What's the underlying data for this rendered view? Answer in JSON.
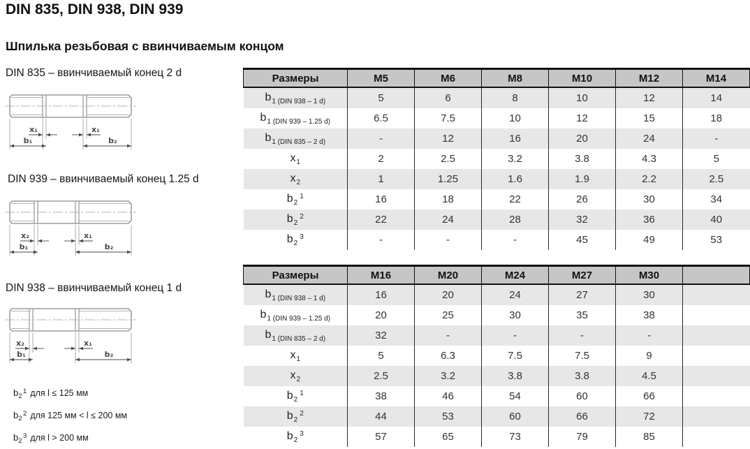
{
  "page_title": "DIN 835, DIN 938, DIN 939",
  "subtitle": "Шпилька резьбовая с ввинчиваемым концом",
  "drawings": [
    {
      "caption": "DIN 835 – ввинчиваемый конец 2 d",
      "left_x_label": "x₁",
      "right_x_label": "x₁",
      "b1_label": "b₁",
      "b2_label": "b₂"
    },
    {
      "caption": "DIN 939 – ввинчиваемый конец 1.25 d",
      "left_x_label": "x₂",
      "right_x_label": "x₁",
      "b1_label": "b₁",
      "b2_label": "b₂"
    },
    {
      "caption": "DIN 938 – ввинчиваемый конец 1 d",
      "left_x_label": "x₂",
      "right_x_label": "x₁",
      "b1_label": "b₁",
      "b2_label": "b₂"
    }
  ],
  "footnotes": [
    {
      "base": "b",
      "sub": "2",
      "sup": "1",
      "text": "для l ≤ 125 мм"
    },
    {
      "base": "b",
      "sub": "2",
      "sup": "2",
      "text": "для 125 мм < l ≤ 200 мм"
    },
    {
      "base": "b",
      "sub": "2",
      "sup": "3",
      "text": "для l > 200 мм"
    }
  ],
  "tables": [
    {
      "header": [
        "Размеры",
        "M5",
        "M6",
        "M8",
        "M10",
        "M12",
        "M14"
      ],
      "rows": [
        {
          "label": {
            "base": "b",
            "sub": "1 (DIN 938 – 1 d)",
            "sup": ""
          },
          "values": [
            "5",
            "6",
            "8",
            "10",
            "12",
            "14"
          ]
        },
        {
          "label": {
            "base": "b",
            "sub": "1 (DIN 939 – 1.25 d)",
            "sup": ""
          },
          "values": [
            "6.5",
            "7.5",
            "10",
            "12",
            "15",
            "18"
          ]
        },
        {
          "label": {
            "base": "b",
            "sub": "1 (DIN 835 – 2 d)",
            "sup": ""
          },
          "values": [
            "-",
            "12",
            "16",
            "20",
            "24",
            "-"
          ]
        },
        {
          "label": {
            "base": "x",
            "sub": "1",
            "sup": ""
          },
          "values": [
            "2",
            "2.5",
            "3.2",
            "3.8",
            "4.3",
            "5"
          ]
        },
        {
          "label": {
            "base": "x",
            "sub": "2",
            "sup": ""
          },
          "values": [
            "1",
            "1.25",
            "1.6",
            "1.9",
            "2.2",
            "2.5"
          ]
        },
        {
          "label": {
            "base": "b",
            "sub": "2",
            "sup": "1"
          },
          "values": [
            "16",
            "18",
            "22",
            "26",
            "30",
            "34"
          ]
        },
        {
          "label": {
            "base": "b",
            "sub": "2",
            "sup": "2"
          },
          "values": [
            "22",
            "24",
            "28",
            "32",
            "36",
            "40"
          ]
        },
        {
          "label": {
            "base": "b",
            "sub": "2",
            "sup": "3"
          },
          "values": [
            "-",
            "-",
            "-",
            "45",
            "49",
            "53"
          ]
        }
      ]
    },
    {
      "header": [
        "Размеры",
        "M16",
        "M20",
        "M24",
        "M27",
        "M30",
        ""
      ],
      "rows": [
        {
          "label": {
            "base": "b",
            "sub": "1 (DIN 938 – 1 d)",
            "sup": ""
          },
          "values": [
            "16",
            "20",
            "24",
            "27",
            "30",
            ""
          ]
        },
        {
          "label": {
            "base": "b",
            "sub": "1 (DIN 939 – 1.25 d)",
            "sup": ""
          },
          "values": [
            "20",
            "25",
            "30",
            "35",
            "38",
            ""
          ]
        },
        {
          "label": {
            "base": "b",
            "sub": "1 (DIN 835 – 2 d)",
            "sup": ""
          },
          "values": [
            "32",
            "-",
            "-",
            "-",
            "-",
            ""
          ]
        },
        {
          "label": {
            "base": "x",
            "sub": "1",
            "sup": ""
          },
          "values": [
            "5",
            "6.3",
            "7.5",
            "7.5",
            "9",
            ""
          ]
        },
        {
          "label": {
            "base": "x",
            "sub": "2",
            "sup": ""
          },
          "values": [
            "2.5",
            "3.2",
            "3.8",
            "3.8",
            "4.5",
            ""
          ]
        },
        {
          "label": {
            "base": "b",
            "sub": "2",
            "sup": "1"
          },
          "values": [
            "38",
            "46",
            "54",
            "60",
            "66",
            ""
          ]
        },
        {
          "label": {
            "base": "b",
            "sub": "2",
            "sup": "2"
          },
          "values": [
            "44",
            "53",
            "60",
            "66",
            "72",
            ""
          ]
        },
        {
          "label": {
            "base": "b",
            "sub": "2",
            "sup": "3"
          },
          "values": [
            "57",
            "65",
            "73",
            "79",
            "85",
            ""
          ]
        }
      ]
    }
  ],
  "colors": {
    "header_bg": "#c6c6c6",
    "row_alt_bg": "#e7e7e7",
    "table_border": "#111111",
    "drawing_line": "#8a8a8a"
  }
}
